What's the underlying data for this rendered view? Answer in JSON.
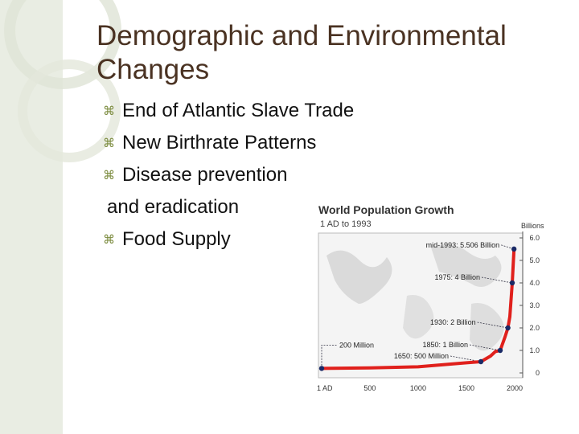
{
  "slide": {
    "title_line1": "Demographic and Environmental",
    "title_line2": "Changes",
    "bullets": [
      {
        "text": "End of Atlantic Slave Trade",
        "has_bullet": true
      },
      {
        "text": "New Birthrate Patterns",
        "has_bullet": true
      },
      {
        "text": "Disease prevention",
        "has_bullet": true
      },
      {
        "text": "and eradication",
        "has_bullet": false
      },
      {
        "text": "Food Supply",
        "has_bullet": true
      }
    ],
    "bullet_glyph": "⌘",
    "colors": {
      "title": "#4a3222",
      "bullet": "#7a8a3c",
      "accent_bar": "#e9ede3"
    }
  },
  "chart_data": {
    "type": "line",
    "title": "World Population Growth",
    "subtitle": "1 AD to 1993",
    "ylabel": "Billions",
    "xlim": [
      1,
      2000
    ],
    "ylim": [
      0,
      6
    ],
    "x_ticks": [
      1,
      500,
      1000,
      1500,
      2000
    ],
    "x_tick_labels": [
      "1 AD",
      "500",
      "1000",
      "1500",
      "2000"
    ],
    "y_ticks": [
      0,
      1,
      2,
      3,
      4,
      5,
      6
    ],
    "y_tick_labels": [
      "0",
      "1.0",
      "2.0",
      "3.0",
      "4.0",
      "5.0",
      "6.0"
    ],
    "series": [
      {
        "color": "#e0201c",
        "x": [
          1,
          500,
          1000,
          1500,
          1650,
          1750,
          1800,
          1850,
          1900,
          1930,
          1950,
          1975,
          1993
        ],
        "y": [
          0.2,
          0.22,
          0.27,
          0.45,
          0.5,
          0.75,
          0.95,
          1.0,
          1.6,
          2.0,
          2.5,
          4.0,
          5.506
        ]
      }
    ],
    "annotations": [
      {
        "text": "mid-1993: 5.506 Billion",
        "x": 1993,
        "y": 5.506
      },
      {
        "text": "1975: 4 Billion",
        "x": 1975,
        "y": 4.0
      },
      {
        "text": "1930: 2 Billion",
        "x": 1930,
        "y": 2.0
      },
      {
        "text": "1850: 1 Billion",
        "x": 1850,
        "y": 1.0
      },
      {
        "text": "1650: 500 Million",
        "x": 1650,
        "y": 0.5
      },
      {
        "text": "200 Million",
        "x": 1,
        "y": 0.2
      }
    ],
    "grid": false
  }
}
